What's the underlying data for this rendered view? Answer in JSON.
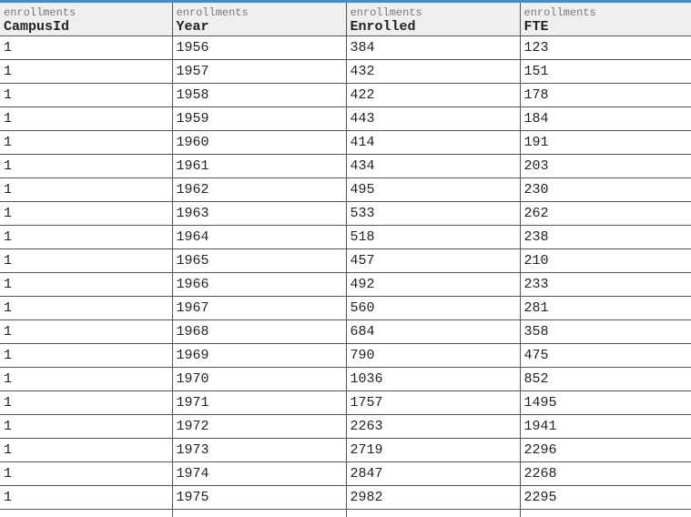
{
  "colors": {
    "accent": "#3a8fd6",
    "header_bg": "#efefef",
    "grid": "#555555"
  },
  "columns": [
    {
      "table": "enrollments",
      "name": "CampusId"
    },
    {
      "table": "enrollments",
      "name": "Year"
    },
    {
      "table": "enrollments",
      "name": "Enrolled"
    },
    {
      "table": "enrollments",
      "name": "FTE"
    }
  ],
  "rows": [
    [
      "1",
      "1956",
      "384",
      "123"
    ],
    [
      "1",
      "1957",
      "432",
      "151"
    ],
    [
      "1",
      "1958",
      "422",
      "178"
    ],
    [
      "1",
      "1959",
      "443",
      "184"
    ],
    [
      "1",
      "1960",
      "414",
      "191"
    ],
    [
      "1",
      "1961",
      "434",
      "203"
    ],
    [
      "1",
      "1962",
      "495",
      "230"
    ],
    [
      "1",
      "1963",
      "533",
      "262"
    ],
    [
      "1",
      "1964",
      "518",
      "238"
    ],
    [
      "1",
      "1965",
      "457",
      "210"
    ],
    [
      "1",
      "1966",
      "492",
      "233"
    ],
    [
      "1",
      "1967",
      "560",
      "281"
    ],
    [
      "1",
      "1968",
      "684",
      "358"
    ],
    [
      "1",
      "1969",
      "790",
      "475"
    ],
    [
      "1",
      "1970",
      "1036",
      "852"
    ],
    [
      "1",
      "1971",
      "1757",
      "1495"
    ],
    [
      "1",
      "1972",
      "2263",
      "1941"
    ],
    [
      "1",
      "1973",
      "2719",
      "2296"
    ],
    [
      "1",
      "1974",
      "2847",
      "2268"
    ],
    [
      "1",
      "1975",
      "2982",
      "2295"
    ],
    [
      "",
      "",
      "",
      ""
    ]
  ]
}
